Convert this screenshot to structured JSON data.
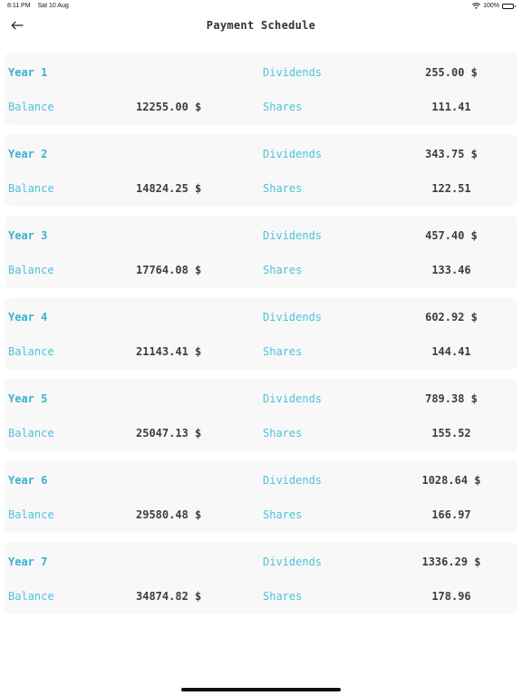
{
  "status_bar": {
    "time": "8:11 PM",
    "date": "Sat 10 Aug",
    "battery": "100%"
  },
  "header": {
    "title": "Payment Schedule",
    "back_icon": "arrow-left-icon"
  },
  "labels": {
    "balance": "Balance",
    "dividends": "Dividends",
    "shares": "Shares"
  },
  "colors": {
    "accent": "#4cc3d9",
    "card_bg": "#f8f8f8"
  },
  "schedule": [
    {
      "year": "Year 1",
      "balance": "12255.00 $",
      "dividends": "255.00 $",
      "shares": "111.41"
    },
    {
      "year": "Year 2",
      "balance": "14824.25 $",
      "dividends": "343.75 $",
      "shares": "122.51"
    },
    {
      "year": "Year 3",
      "balance": "17764.08 $",
      "dividends": "457.40 $",
      "shares": "133.46"
    },
    {
      "year": "Year 4",
      "balance": "21143.41 $",
      "dividends": "602.92 $",
      "shares": "144.41"
    },
    {
      "year": "Year 5",
      "balance": "25047.13 $",
      "dividends": "789.38 $",
      "shares": "155.52"
    },
    {
      "year": "Year 6",
      "balance": "29580.48 $",
      "dividends": "1028.64 $",
      "shares": "166.97"
    },
    {
      "year": "Year 7",
      "balance": "34874.82 $",
      "dividends": "1336.29 $",
      "shares": "178.96"
    }
  ]
}
